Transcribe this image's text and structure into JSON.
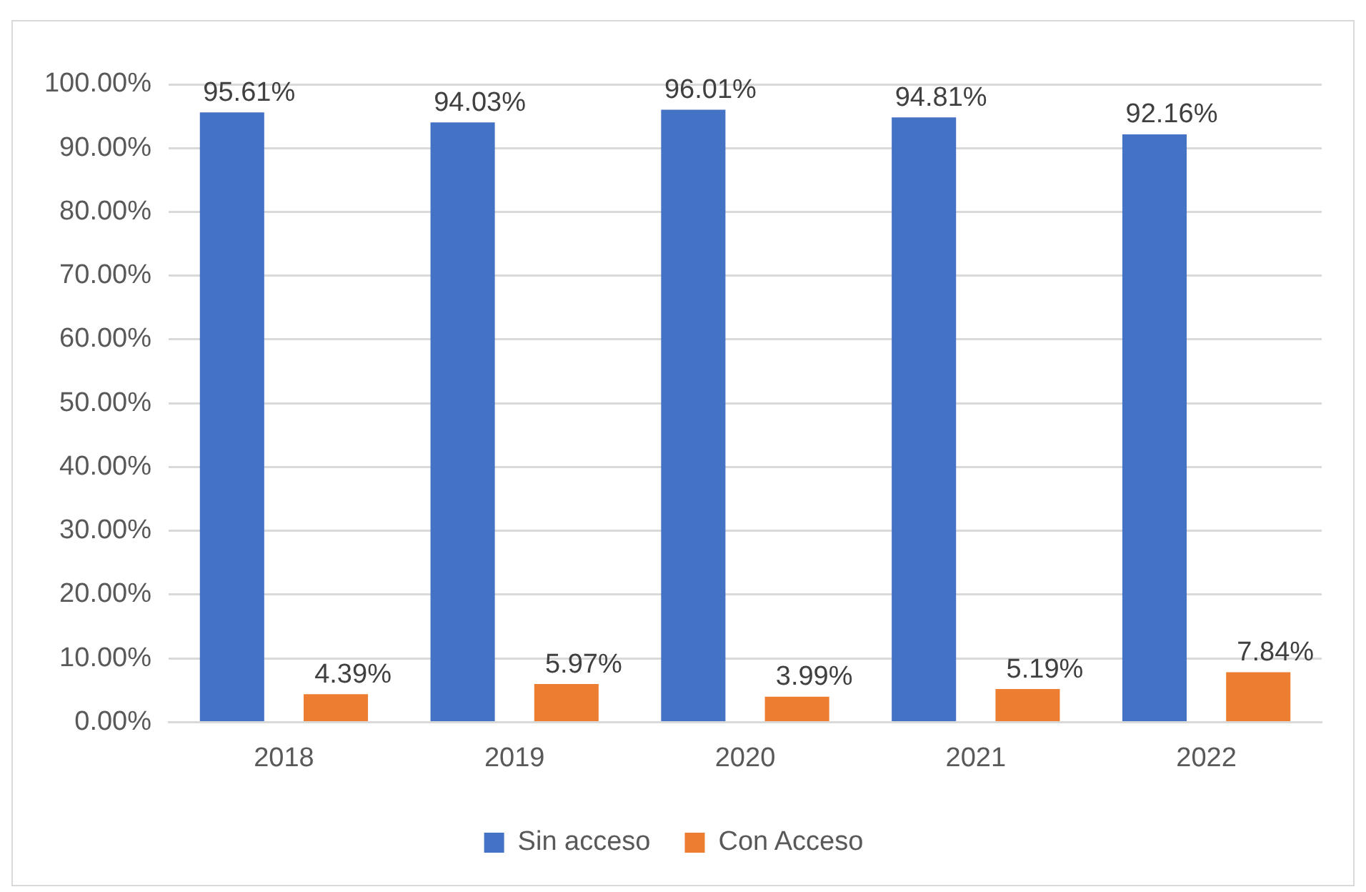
{
  "chart_data": {
    "type": "bar",
    "categories": [
      "2018",
      "2019",
      "2020",
      "2021",
      "2022"
    ],
    "series": [
      {
        "name": "Sin acceso",
        "color": "#4472c4",
        "values": [
          95.61,
          94.03,
          96.01,
          94.81,
          92.16
        ],
        "value_labels": [
          "95.61%",
          "94.03%",
          "96.01%",
          "94.81%",
          "92.16%"
        ]
      },
      {
        "name": "Con Acceso",
        "color": "#ed7d31",
        "values": [
          4.39,
          5.97,
          3.99,
          5.19,
          7.84
        ],
        "value_labels": [
          "4.39%",
          "5.97%",
          "3.99%",
          "5.19%",
          "7.84%"
        ]
      }
    ],
    "ylim": [
      0,
      100
    ],
    "yticks": [
      {
        "value": 0,
        "label": "0.00%"
      },
      {
        "value": 10,
        "label": "10.00%"
      },
      {
        "value": 20,
        "label": "20.00%"
      },
      {
        "value": 30,
        "label": "30.00%"
      },
      {
        "value": 40,
        "label": "40.00%"
      },
      {
        "value": 50,
        "label": "50.00%"
      },
      {
        "value": 60,
        "label": "60.00%"
      },
      {
        "value": 70,
        "label": "70.00%"
      },
      {
        "value": 80,
        "label": "80.00%"
      },
      {
        "value": 90,
        "label": "90.00%"
      },
      {
        "value": 100,
        "label": "100.00%"
      }
    ],
    "grid": "y",
    "legend": "bottom"
  }
}
